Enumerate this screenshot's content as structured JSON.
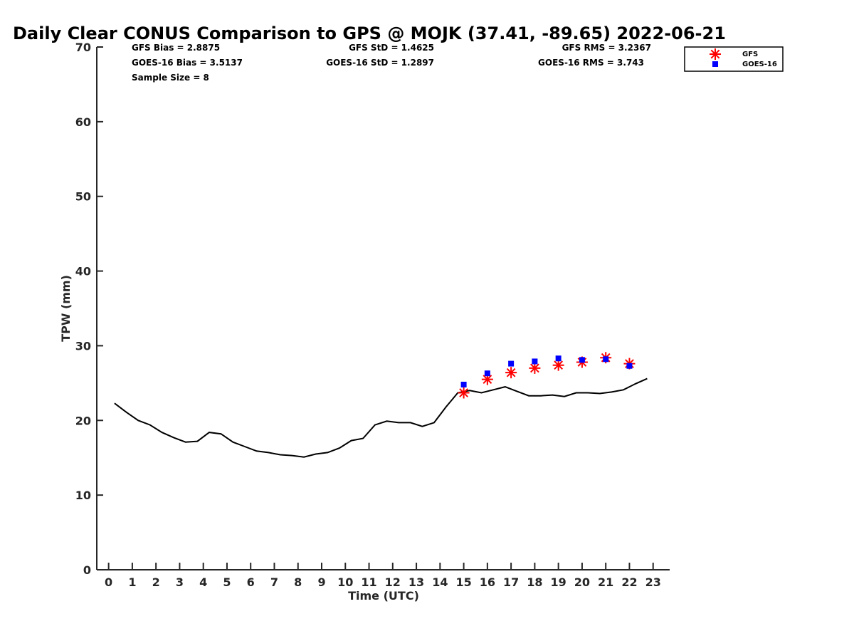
{
  "chart_data": {
    "type": "line",
    "title": "Daily Clear CONUS Comparison to GPS @ MOJK (37.41, -89.65) 2022-06-21",
    "xlabel": "Time (UTC)",
    "ylabel": "TPW (mm)",
    "xlim": [
      -0.5,
      23.7
    ],
    "ylim": [
      0,
      70
    ],
    "xticks": [
      0,
      1,
      2,
      3,
      4,
      5,
      6,
      7,
      8,
      9,
      10,
      11,
      12,
      13,
      14,
      15,
      16,
      17,
      18,
      19,
      20,
      21,
      22,
      23
    ],
    "yticks": [
      0,
      10,
      20,
      30,
      40,
      50,
      60,
      70
    ],
    "stats": {
      "gfs_bias": "GFS Bias = 2.8875",
      "goes_bias": "GOES-16 Bias = 3.5137",
      "sample_size": "Sample Size = 8",
      "gfs_std": "GFS StD = 1.4625",
      "goes_std": "GOES-16 StD = 1.2897",
      "gfs_rms": "GFS RMS = 3.2367",
      "goes_rms": "GOES-16 RMS = 3.743"
    },
    "legend": {
      "placement": "top-right",
      "items": [
        "GFS",
        "GOES-16"
      ]
    },
    "colors": {
      "gps": "#000000",
      "gfs": "#ff0000",
      "goes": "#0000ff"
    },
    "series": [
      {
        "line_color": "black",
        "style": "line",
        "x": [
          0.25,
          0.75,
          1.25,
          1.75,
          2.25,
          2.75,
          3.25,
          3.75,
          4.25,
          4.75,
          5.25,
          5.75,
          6.25,
          6.75,
          7.25,
          7.75,
          8.25,
          8.75,
          9.25,
          9.75,
          10.25,
          10.75,
          11.25,
          11.75,
          12.25,
          12.75,
          13.25,
          13.75,
          14.25,
          14.75,
          15.25,
          15.75,
          16.25,
          16.75,
          17.25,
          17.75,
          18.25,
          18.75,
          19.25,
          19.75,
          20.25,
          20.75,
          21.25,
          21.75,
          22.25,
          22.75
        ],
        "y": [
          22.3,
          21.1,
          20.0,
          19.4,
          18.4,
          17.7,
          17.1,
          17.2,
          18.4,
          18.2,
          17.1,
          16.5,
          15.9,
          15.7,
          15.4,
          15.3,
          15.1,
          15.5,
          15.7,
          16.3,
          17.3,
          17.6,
          19.4,
          19.9,
          19.7,
          19.7,
          19.2,
          19.7,
          21.8,
          23.7,
          24.0,
          23.7,
          24.1,
          24.5,
          23.9,
          23.3,
          23.3,
          23.4,
          23.2,
          23.7,
          23.7,
          23.6,
          23.8,
          24.1,
          24.9,
          25.6
        ]
      },
      {
        "name": "GFS",
        "style": "asterisk",
        "x": [
          15,
          16,
          17,
          18,
          19,
          20,
          21,
          22
        ],
        "y": [
          23.7,
          25.5,
          26.4,
          27.0,
          27.4,
          27.8,
          28.4,
          27.6
        ]
      },
      {
        "name": "GOES-16",
        "style": "square",
        "x": [
          15,
          16,
          17,
          18,
          19,
          20,
          21,
          22
        ],
        "y": [
          24.8,
          26.3,
          27.6,
          27.9,
          28.3,
          28.1,
          28.2,
          27.3
        ]
      }
    ]
  }
}
